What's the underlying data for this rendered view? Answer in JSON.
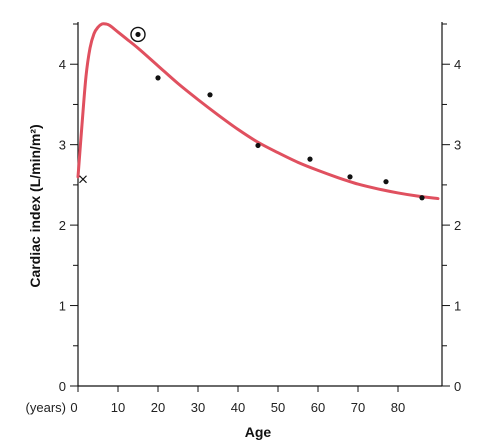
{
  "chart_data": {
    "type": "line",
    "title": "",
    "xlabel": "Age",
    "ylabel": "Cardiac index (L/min/m²)",
    "x_unit_label": "(years)",
    "xlim": [
      0,
      90
    ],
    "ylim": [
      0,
      4.5
    ],
    "x_ticks": [
      0,
      10,
      20,
      30,
      40,
      50,
      60,
      70,
      80
    ],
    "y_ticks": [
      0,
      1,
      2,
      3,
      4
    ],
    "y_ticks_right": [
      0,
      1,
      2,
      3,
      4
    ],
    "grid": false,
    "colors": {
      "curve": "#e0505f",
      "points": "#111111",
      "axis": "#111111"
    },
    "series": [
      {
        "kind": "curve",
        "x": [
          0,
          1,
          2,
          3,
          4,
          5,
          6,
          7,
          8,
          10,
          12,
          15,
          20,
          25,
          30,
          35,
          40,
          45,
          50,
          55,
          60,
          65,
          70,
          75,
          80,
          85,
          90
        ],
        "values": [
          2.6,
          3.25,
          3.85,
          4.2,
          4.38,
          4.46,
          4.5,
          4.5,
          4.48,
          4.4,
          4.32,
          4.2,
          3.98,
          3.76,
          3.56,
          3.37,
          3.19,
          3.03,
          2.9,
          2.78,
          2.68,
          2.59,
          2.51,
          2.45,
          2.4,
          2.36,
          2.33
        ]
      },
      {
        "kind": "points",
        "x": [
          20,
          33,
          45,
          58,
          68,
          77,
          86
        ],
        "values": [
          3.83,
          3.62,
          2.99,
          2.82,
          2.6,
          2.54,
          2.34
        ]
      },
      {
        "kind": "circled-point",
        "x": [
          15
        ],
        "values": [
          4.37
        ]
      },
      {
        "kind": "cross-point",
        "x": [
          0
        ],
        "values": [
          2.57
        ]
      }
    ]
  }
}
